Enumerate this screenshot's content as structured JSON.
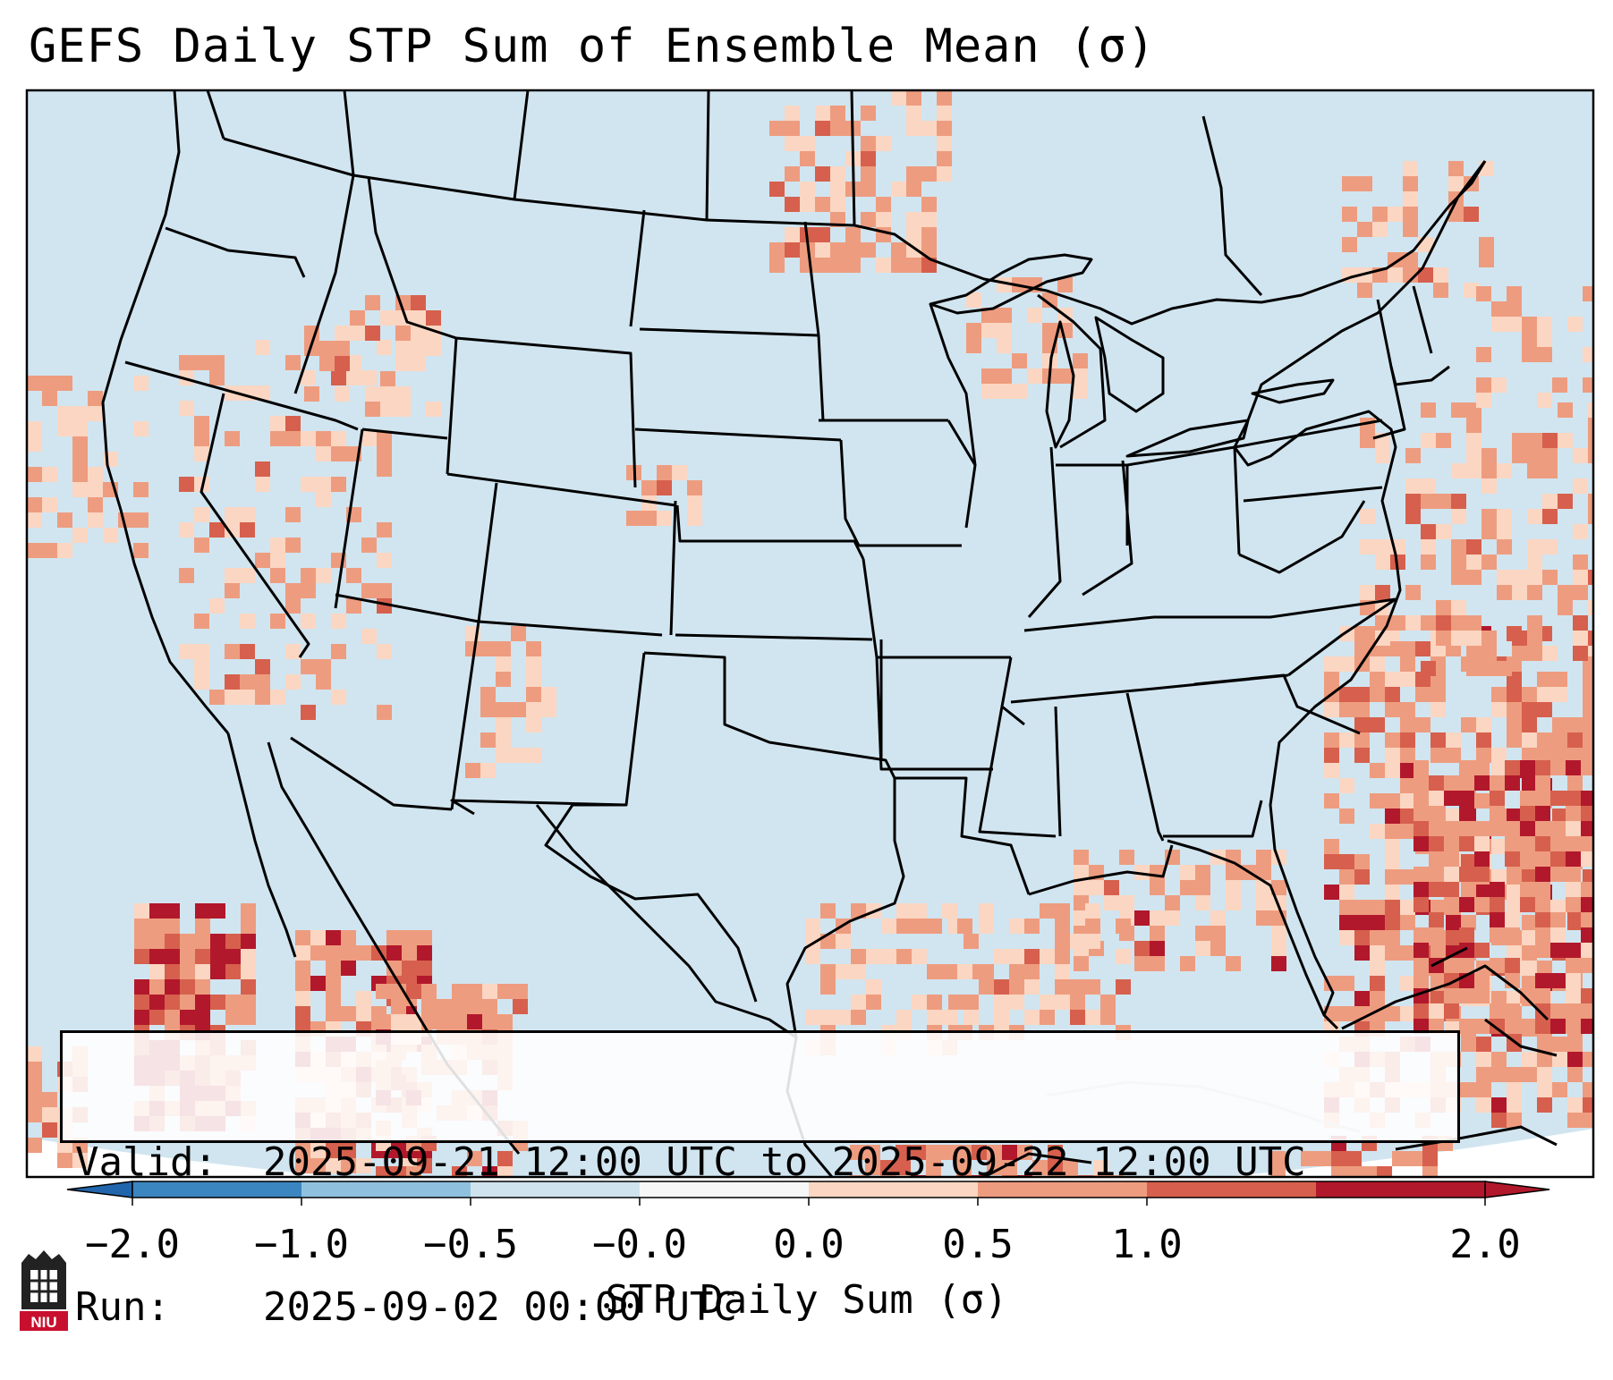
{
  "title": "GEFS Daily STP Sum of Ensemble Mean (σ)",
  "info": {
    "valid_label": "Valid:",
    "valid_value": "2025-09-21 12:00 UTC to 2025-09-22 12:00 UTC",
    "run_label": "Run:",
    "run_value": "2025-09-02 00:00 UTC"
  },
  "colorbar": {
    "label": "STP Daily Sum (σ)",
    "ticks": [
      "−2.0",
      "−1.0",
      "−0.5",
      "−0.0",
      "0.0",
      "0.5",
      "1.0",
      "2.0"
    ],
    "bin_colors": [
      "#3b86c0",
      "#8fc1df",
      "#cfe3ee",
      "#f7f7f7",
      "#fbd6c2",
      "#ee9c7f",
      "#d6604d",
      "#b2182b"
    ],
    "extend_low_color": "#2166ac",
    "extend_high_color": "#b2182b"
  },
  "map_colors": {
    "background": "#d1e5f0",
    "outside": "#ffffff",
    "boundaries": "#000000"
  },
  "logo": {
    "text": "NIU",
    "color": "#c8102e"
  }
}
